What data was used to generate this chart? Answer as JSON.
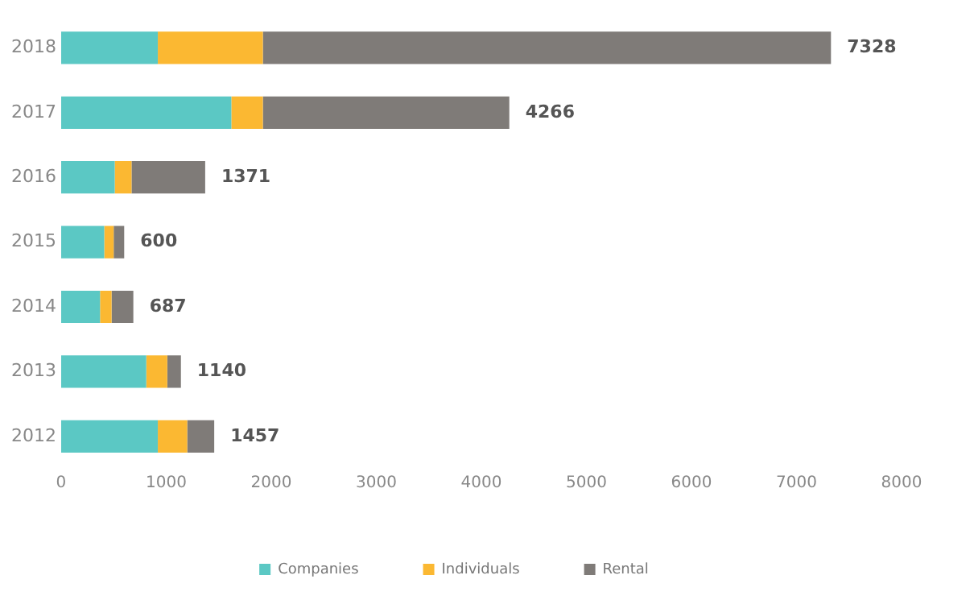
{
  "chart_data": {
    "type": "bar",
    "orientation": "horizontal",
    "stacked": true,
    "categories": [
      "2018",
      "2017",
      "2016",
      "2015",
      "2014",
      "2013",
      "2012"
    ],
    "series": [
      {
        "name": "Companies",
        "color": "#5bc8c4",
        "values": [
          920,
          1620,
          510,
          410,
          370,
          810,
          920
        ]
      },
      {
        "name": "Individuals",
        "color": "#fbb832",
        "values": [
          1000,
          300,
          160,
          90,
          110,
          200,
          280
        ]
      },
      {
        "name": "Rental",
        "color": "#7f7b78",
        "values": [
          5408,
          2346,
          701,
          100,
          207,
          130,
          257
        ]
      }
    ],
    "totals": [
      "7328",
      "4266",
      "1371",
      "600",
      "687",
      "1140",
      "1457"
    ],
    "xlim": [
      0,
      8000
    ],
    "xticks": [
      0,
      1000,
      2000,
      3000,
      4000,
      5000,
      6000,
      7000,
      8000
    ],
    "grid": false,
    "legend": "bottom"
  }
}
